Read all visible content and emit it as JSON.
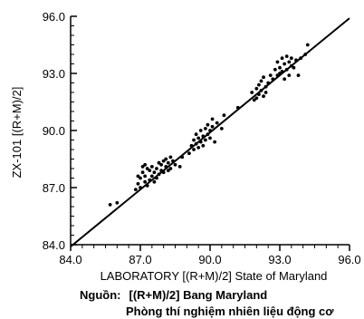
{
  "chart_data": {
    "type": "scatter",
    "title": "",
    "xlabel": "LABORATORY [(R+M)/2] State of Maryland",
    "ylabel": "ZX-101 [(R+M)/2]",
    "xlim": [
      84.0,
      96.0
    ],
    "ylim": [
      84.0,
      96.0
    ],
    "xticks": [
      "84.0",
      "87.0",
      "90.0",
      "93.0",
      "96.0"
    ],
    "yticks": [
      "84.0",
      "87.0",
      "90.0",
      "93.0",
      "96.0"
    ],
    "grid": false,
    "trend_line": {
      "x": [
        84.0,
        96.0
      ],
      "y": [
        83.9,
        95.9
      ]
    },
    "series": [
      {
        "points": [
          [
            85.7,
            86.1
          ],
          [
            86.0,
            86.2
          ],
          [
            86.8,
            86.9
          ],
          [
            86.9,
            87.2
          ],
          [
            87.0,
            87.0
          ],
          [
            87.0,
            87.5
          ],
          [
            87.1,
            87.8
          ],
          [
            87.1,
            88.1
          ],
          [
            87.2,
            87.3
          ],
          [
            87.2,
            87.6
          ],
          [
            87.3,
            88.0
          ],
          [
            87.3,
            87.1
          ],
          [
            87.4,
            87.4
          ],
          [
            87.4,
            87.9
          ],
          [
            87.5,
            87.6
          ],
          [
            87.5,
            88.1
          ],
          [
            87.6,
            87.3
          ],
          [
            87.6,
            87.8
          ],
          [
            87.7,
            88.0
          ],
          [
            87.7,
            87.5
          ],
          [
            87.8,
            87.7
          ],
          [
            87.8,
            88.3
          ],
          [
            87.9,
            87.9
          ],
          [
            87.9,
            88.2
          ],
          [
            88.0,
            88.4
          ],
          [
            88.0,
            87.8
          ],
          [
            88.1,
            88.1
          ],
          [
            88.1,
            88.5
          ],
          [
            88.2,
            87.9
          ],
          [
            88.2,
            88.3
          ],
          [
            88.3,
            88.6
          ],
          [
            88.3,
            88.0
          ],
          [
            88.4,
            88.4
          ],
          [
            88.5,
            88.2
          ],
          [
            88.7,
            88.1
          ],
          [
            88.8,
            88.6
          ],
          [
            86.9,
            87.6
          ],
          [
            87.2,
            88.2
          ],
          [
            89.1,
            88.8
          ],
          [
            89.2,
            89.2
          ],
          [
            89.3,
            89.0
          ],
          [
            89.3,
            89.5
          ],
          [
            89.4,
            89.3
          ],
          [
            89.4,
            89.8
          ],
          [
            89.5,
            89.1
          ],
          [
            89.5,
            89.6
          ],
          [
            89.6,
            89.4
          ],
          [
            89.6,
            90.0
          ],
          [
            89.7,
            89.2
          ],
          [
            89.7,
            89.7
          ],
          [
            89.8,
            89.5
          ],
          [
            89.8,
            90.1
          ],
          [
            89.9,
            89.8
          ],
          [
            89.9,
            90.3
          ],
          [
            90.0,
            89.6
          ],
          [
            90.0,
            90.0
          ],
          [
            90.1,
            90.2
          ],
          [
            90.1,
            90.6
          ],
          [
            90.2,
            89.4
          ],
          [
            90.3,
            90.4
          ],
          [
            90.5,
            90.1
          ],
          [
            90.6,
            90.8
          ],
          [
            91.2,
            91.2
          ],
          [
            91.8,
            92.0
          ],
          [
            91.9,
            91.6
          ],
          [
            92.0,
            92.2
          ],
          [
            92.0,
            91.7
          ],
          [
            92.1,
            92.4
          ],
          [
            92.1,
            91.9
          ],
          [
            92.2,
            92.6
          ],
          [
            92.2,
            92.1
          ],
          [
            92.3,
            91.8
          ],
          [
            92.3,
            92.8
          ],
          [
            92.4,
            92.3
          ],
          [
            92.4,
            92.0
          ],
          [
            92.5,
            92.5
          ],
          [
            92.6,
            92.9
          ],
          [
            92.7,
            92.7
          ],
          [
            92.8,
            93.2
          ],
          [
            92.9,
            92.9
          ],
          [
            92.9,
            93.6
          ],
          [
            93.0,
            93.0
          ],
          [
            93.0,
            93.3
          ],
          [
            93.1,
            93.8
          ],
          [
            93.1,
            93.1
          ],
          [
            93.2,
            92.7
          ],
          [
            93.2,
            93.5
          ],
          [
            93.3,
            93.9
          ],
          [
            93.3,
            93.2
          ],
          [
            93.4,
            93.6
          ],
          [
            93.4,
            92.9
          ],
          [
            93.5,
            93.4
          ],
          [
            93.5,
            93.8
          ],
          [
            93.6,
            93.3
          ],
          [
            93.7,
            93.7
          ],
          [
            93.8,
            92.9
          ],
          [
            93.9,
            93.8
          ],
          [
            94.1,
            94.0
          ],
          [
            94.2,
            94.5
          ]
        ]
      }
    ]
  },
  "caption": {
    "source_label": "Nguồn:",
    "line1": "[(R+M)/2] Bang Maryland",
    "line2": "Phòng thí nghiệm nhiên liệu động cơ"
  }
}
